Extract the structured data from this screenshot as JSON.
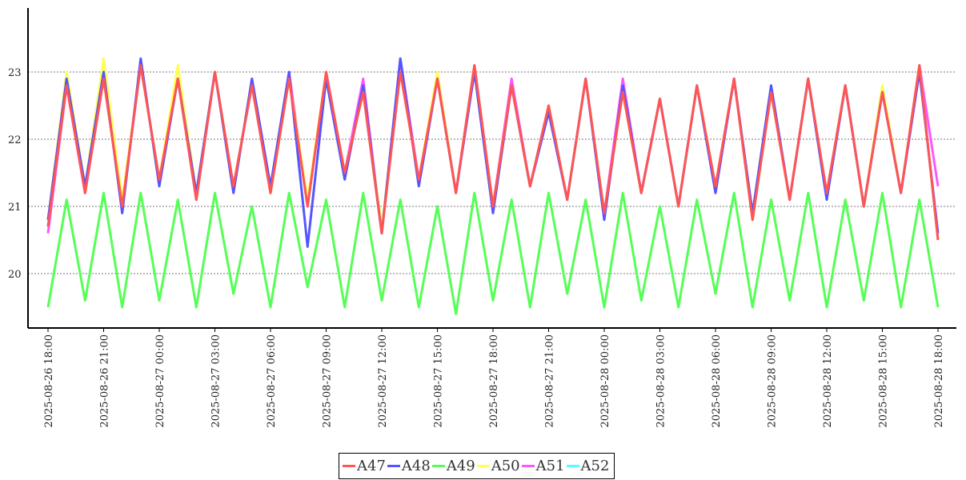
{
  "chart_data": {
    "type": "line",
    "title": "",
    "xlabel": "",
    "ylabel": "",
    "ylim": [
      19.2,
      23.95
    ],
    "yticks": [
      "20",
      "21",
      "22",
      "23"
    ],
    "ytick_values": [
      20,
      21,
      22,
      23
    ],
    "grid": "horizontal dashed",
    "legend_position": "bottom-center",
    "x_start": "2025-08-26 18:00",
    "x_step_hours": 1,
    "xticks": [
      "2025-08-26  18:00",
      "2025-08-26  21:00",
      "2025-08-27  00:00",
      "2025-08-27  03:00",
      "2025-08-27  06:00",
      "2025-08-27  09:00",
      "2025-08-27  12:00",
      "2025-08-27  15:00",
      "2025-08-27  18:00",
      "2025-08-27  21:00",
      "2025-08-28  00:00",
      "2025-08-28  03:00",
      "2025-08-28  06:00",
      "2025-08-28  09:00",
      "2025-08-28  12:00",
      "2025-08-28  15:00",
      "2025-08-28  18:00"
    ],
    "xtick_hours": [
      0,
      3,
      6,
      9,
      12,
      15,
      18,
      21,
      24,
      27,
      30,
      33,
      36,
      39,
      42,
      45,
      48
    ],
    "series": [
      {
        "name": "A47",
        "color": "#ff5555",
        "values": [
          20.7,
          22.8,
          21.2,
          22.9,
          21.0,
          23.1,
          21.4,
          22.9,
          21.1,
          23.0,
          21.3,
          22.8,
          21.2,
          22.9,
          21.0,
          23.0,
          21.5,
          22.7,
          20.6,
          23.0,
          21.4,
          22.9,
          21.2,
          23.1,
          21.0,
          22.8,
          21.3,
          22.5,
          21.1,
          22.9,
          20.9,
          22.7,
          21.2,
          22.6,
          21.0,
          22.8,
          21.3,
          22.9,
          20.8,
          22.7,
          21.1,
          22.9,
          21.2,
          22.8,
          21.0,
          22.7,
          21.2,
          23.1,
          20.5
        ]
      },
      {
        "name": "A48",
        "color": "#5555ff",
        "values": [
          20.8,
          22.9,
          21.3,
          23.0,
          20.9,
          23.2,
          21.3,
          22.9,
          21.2,
          23.0,
          21.2,
          22.9,
          21.3,
          23.0,
          20.4,
          22.9,
          21.4,
          22.8,
          20.6,
          23.2,
          21.3,
          22.9,
          21.2,
          23.0,
          20.9,
          22.8,
          21.3,
          22.4,
          21.1,
          22.9,
          20.8,
          22.8,
          21.2,
          22.6,
          21.0,
          22.8,
          21.2,
          22.9,
          20.9,
          22.8,
          21.1,
          22.9,
          21.1,
          22.8,
          21.0,
          22.7,
          21.2,
          23.0,
          20.6
        ]
      },
      {
        "name": "A49",
        "color": "#55ff55",
        "values": [
          19.5,
          21.1,
          19.6,
          21.2,
          19.5,
          21.2,
          19.6,
          21.1,
          19.5,
          21.2,
          19.7,
          21.0,
          19.5,
          21.2,
          19.8,
          21.1,
          19.5,
          21.2,
          19.6,
          21.1,
          19.5,
          21.0,
          19.4,
          21.2,
          19.6,
          21.1,
          19.5,
          21.2,
          19.7,
          21.1,
          19.5,
          21.2,
          19.6,
          21.0,
          19.5,
          21.1,
          19.7,
          21.2,
          19.5,
          21.1,
          19.6,
          21.2,
          19.5,
          21.1,
          19.6,
          21.2,
          19.5,
          21.1,
          19.5
        ]
      },
      {
        "name": "A50",
        "color": "#ffff55",
        "values": [
          20.8,
          23.0,
          21.3,
          23.2,
          21.1,
          23.1,
          21.4,
          23.1,
          21.2,
          23.0,
          21.3,
          22.8,
          21.2,
          22.9,
          21.1,
          23.0,
          21.5,
          22.7,
          20.7,
          23.0,
          21.4,
          23.0,
          21.2,
          23.1,
          21.0,
          22.8,
          21.3,
          22.5,
          21.1,
          22.9,
          20.9,
          22.7,
          21.2,
          22.6,
          21.0,
          22.8,
          21.3,
          22.9,
          20.8,
          22.7,
          21.1,
          22.9,
          21.2,
          22.8,
          21.0,
          22.8,
          21.2,
          23.1,
          20.5
        ]
      },
      {
        "name": "A51",
        "color": "#ff55ff",
        "values": [
          20.6,
          22.8,
          21.2,
          22.9,
          21.0,
          23.1,
          21.4,
          22.9,
          21.1,
          23.0,
          21.3,
          22.8,
          21.2,
          23.0,
          21.0,
          23.0,
          21.5,
          22.9,
          20.6,
          23.2,
          21.4,
          22.9,
          21.2,
          23.1,
          21.0,
          22.9,
          21.3,
          22.5,
          21.1,
          22.9,
          20.9,
          22.9,
          21.2,
          22.6,
          21.0,
          22.8,
          21.3,
          22.9,
          20.8,
          22.7,
          21.1,
          22.9,
          21.2,
          22.8,
          21.0,
          22.7,
          21.2,
          23.1,
          21.3
        ]
      },
      {
        "name": "A52",
        "color": "#55ffff",
        "values": [
          20.7,
          23.0,
          21.2,
          23.2,
          21.0,
          23.1,
          21.4,
          22.9,
          21.1,
          23.0,
          21.3,
          22.8,
          21.2,
          22.9,
          21.0,
          23.0,
          21.5,
          22.7,
          20.6,
          23.0,
          21.4,
          22.9,
          21.2,
          23.1,
          21.0,
          22.8,
          21.3,
          22.5,
          21.1,
          22.9,
          20.9,
          22.7,
          21.2,
          22.6,
          21.0,
          22.8,
          21.3,
          22.9,
          20.8,
          22.7,
          21.1,
          22.9,
          21.2,
          22.8,
          21.0,
          22.7,
          21.2,
          23.1,
          20.5
        ]
      }
    ]
  }
}
